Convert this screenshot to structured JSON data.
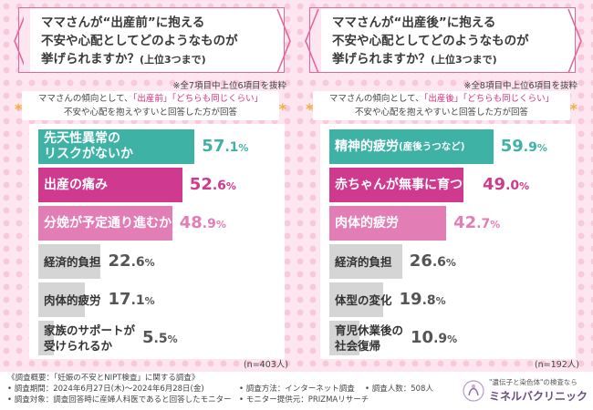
{
  "colors": {
    "accent": "#e2679a",
    "bar_teal": "#3fb2a6",
    "bar_magenta": "#d03a8e",
    "bar_pink": "#e27db5",
    "bar_gray": "#d5d5d5",
    "value_teal": "#3fb2a6",
    "value_magenta": "#d03a8e",
    "value_pink": "#e27db5",
    "value_gray": "#555555"
  },
  "left": {
    "question_l1": "ママさんが“出産前”に抱える",
    "question_l2": "不安や心配としてどのようなものが",
    "question_l3": "挙げられますか？",
    "question_suffix": "(上位3つまで)",
    "note": "※全7項目中上位6項目を抜粋",
    "sub_l1_pre": "ママさんの傾向として、",
    "sub_l1_hl": "「出産前」「どちらも同じくらい」",
    "sub_l2": "不安や心配を抱えやすいと回答した方が回答",
    "n_label": "(n=403人)"
  },
  "right": {
    "question_l1": "ママさんが“出産後”に抱える",
    "question_l2": "不安や心配としてどのようなものが",
    "question_l3": "挙げられますか？",
    "question_suffix": "(上位3つまで)",
    "note": "※全8項目中上位6項目を抜粋",
    "sub_l1_pre": "ママさんの傾向として、",
    "sub_l1_hl": "「出産後」「どちらも同じくらい」",
    "sub_l2": "不安や心配を抱えやすいと回答した方が回答",
    "n_label": "(n=192人)"
  },
  "chart_data": [
    {
      "type": "bar",
      "orientation": "horizontal",
      "unit": "%",
      "xlim": [
        0,
        100
      ],
      "categories": [
        [
          "先天性異常の",
          "リスクがないか"
        ],
        [
          "出産の痛み"
        ],
        [
          "分娩が予定通り進むか"
        ],
        [
          "経済的負担"
        ],
        [
          "肉体的疲労"
        ],
        [
          "家族のサポートが",
          "受けられるか"
        ]
      ],
      "values": [
        57.1,
        52.6,
        48.9,
        22.6,
        17.1,
        5.5
      ],
      "value_labels": [
        {
          "int": "57",
          "dec": ".1",
          "unit": "%"
        },
        {
          "int": "52",
          "dec": ".6",
          "unit": "%"
        },
        {
          "int": "48",
          "dec": ".9",
          "unit": "%"
        },
        {
          "int": "22",
          "dec": ".6",
          "unit": "%"
        },
        {
          "int": "17",
          "dec": ".1",
          "unit": "%"
        },
        {
          "int": "5",
          "dec": ".5",
          "unit": "%"
        }
      ],
      "bar_colors": [
        "#3fb2a6",
        "#d03a8e",
        "#e27db5",
        "#d5d5d5",
        "#d5d5d5",
        "#d5d5d5"
      ]
    },
    {
      "type": "bar",
      "orientation": "horizontal",
      "unit": "%",
      "xlim": [
        0,
        100
      ],
      "categories": [
        [
          "精神的疲労",
          "(産後うつなど)"
        ],
        [
          "赤ちゃんが無事に育つか"
        ],
        [
          "肉体的疲労"
        ],
        [
          "経済的負担"
        ],
        [
          "体型の変化"
        ],
        [
          "育児休業後の",
          "社会復帰"
        ]
      ],
      "values": [
        59.9,
        49.0,
        42.7,
        26.6,
        19.8,
        10.9
      ],
      "value_labels": [
        {
          "int": "59",
          "dec": ".9",
          "unit": "%"
        },
        {
          "int": "49",
          "dec": ".0",
          "unit": "%"
        },
        {
          "int": "42",
          "dec": ".7",
          "unit": "%"
        },
        {
          "int": "26",
          "dec": ".6",
          "unit": "%"
        },
        {
          "int": "19",
          "dec": ".8",
          "unit": "%"
        },
        {
          "int": "10",
          "dec": ".9",
          "unit": "%"
        }
      ],
      "bar_colors": [
        "#3fb2a6",
        "#d03a8e",
        "#e27db5",
        "#d5d5d5",
        "#d5d5d5",
        "#d5d5d5"
      ]
    }
  ],
  "footer": {
    "summary": "《調査概要：「妊娠の不安とNIPT検査」に関する調査》",
    "period": "• 調査期間：2024年6月27日(木)〜2024年6月28日(金)",
    "target": "• 調査対象：調査回答時に産婦人科医であると回答したモニター",
    "method": "• 調査方法：インターネット調査",
    "provider": "• モニター提供元：PRIZMAリサーチ",
    "count": "• 調査人数：508人",
    "logo_sub": "\"遺伝子と染色体\"の検査なら",
    "logo_main": "ミネルバクリニック"
  }
}
